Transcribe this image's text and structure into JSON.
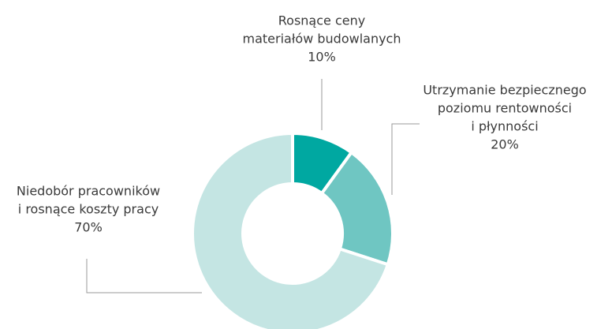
{
  "chart_data": {
    "type": "donut",
    "categories": [
      [
        "Rosnące ceny",
        "materiałów budowlanych"
      ],
      [
        "Utrzymanie bezpiecznego",
        "poziomu rentowności",
        "i płynności"
      ],
      [
        "Niedobór pracowników",
        "i rosnące koszty pracy"
      ]
    ],
    "values": [
      10,
      20,
      70
    ],
    "value_labels": [
      "10%",
      "20%",
      "70%"
    ],
    "colors": [
      "#00a8a1",
      "#6fc6c2",
      "#c4e5e3"
    ]
  }
}
